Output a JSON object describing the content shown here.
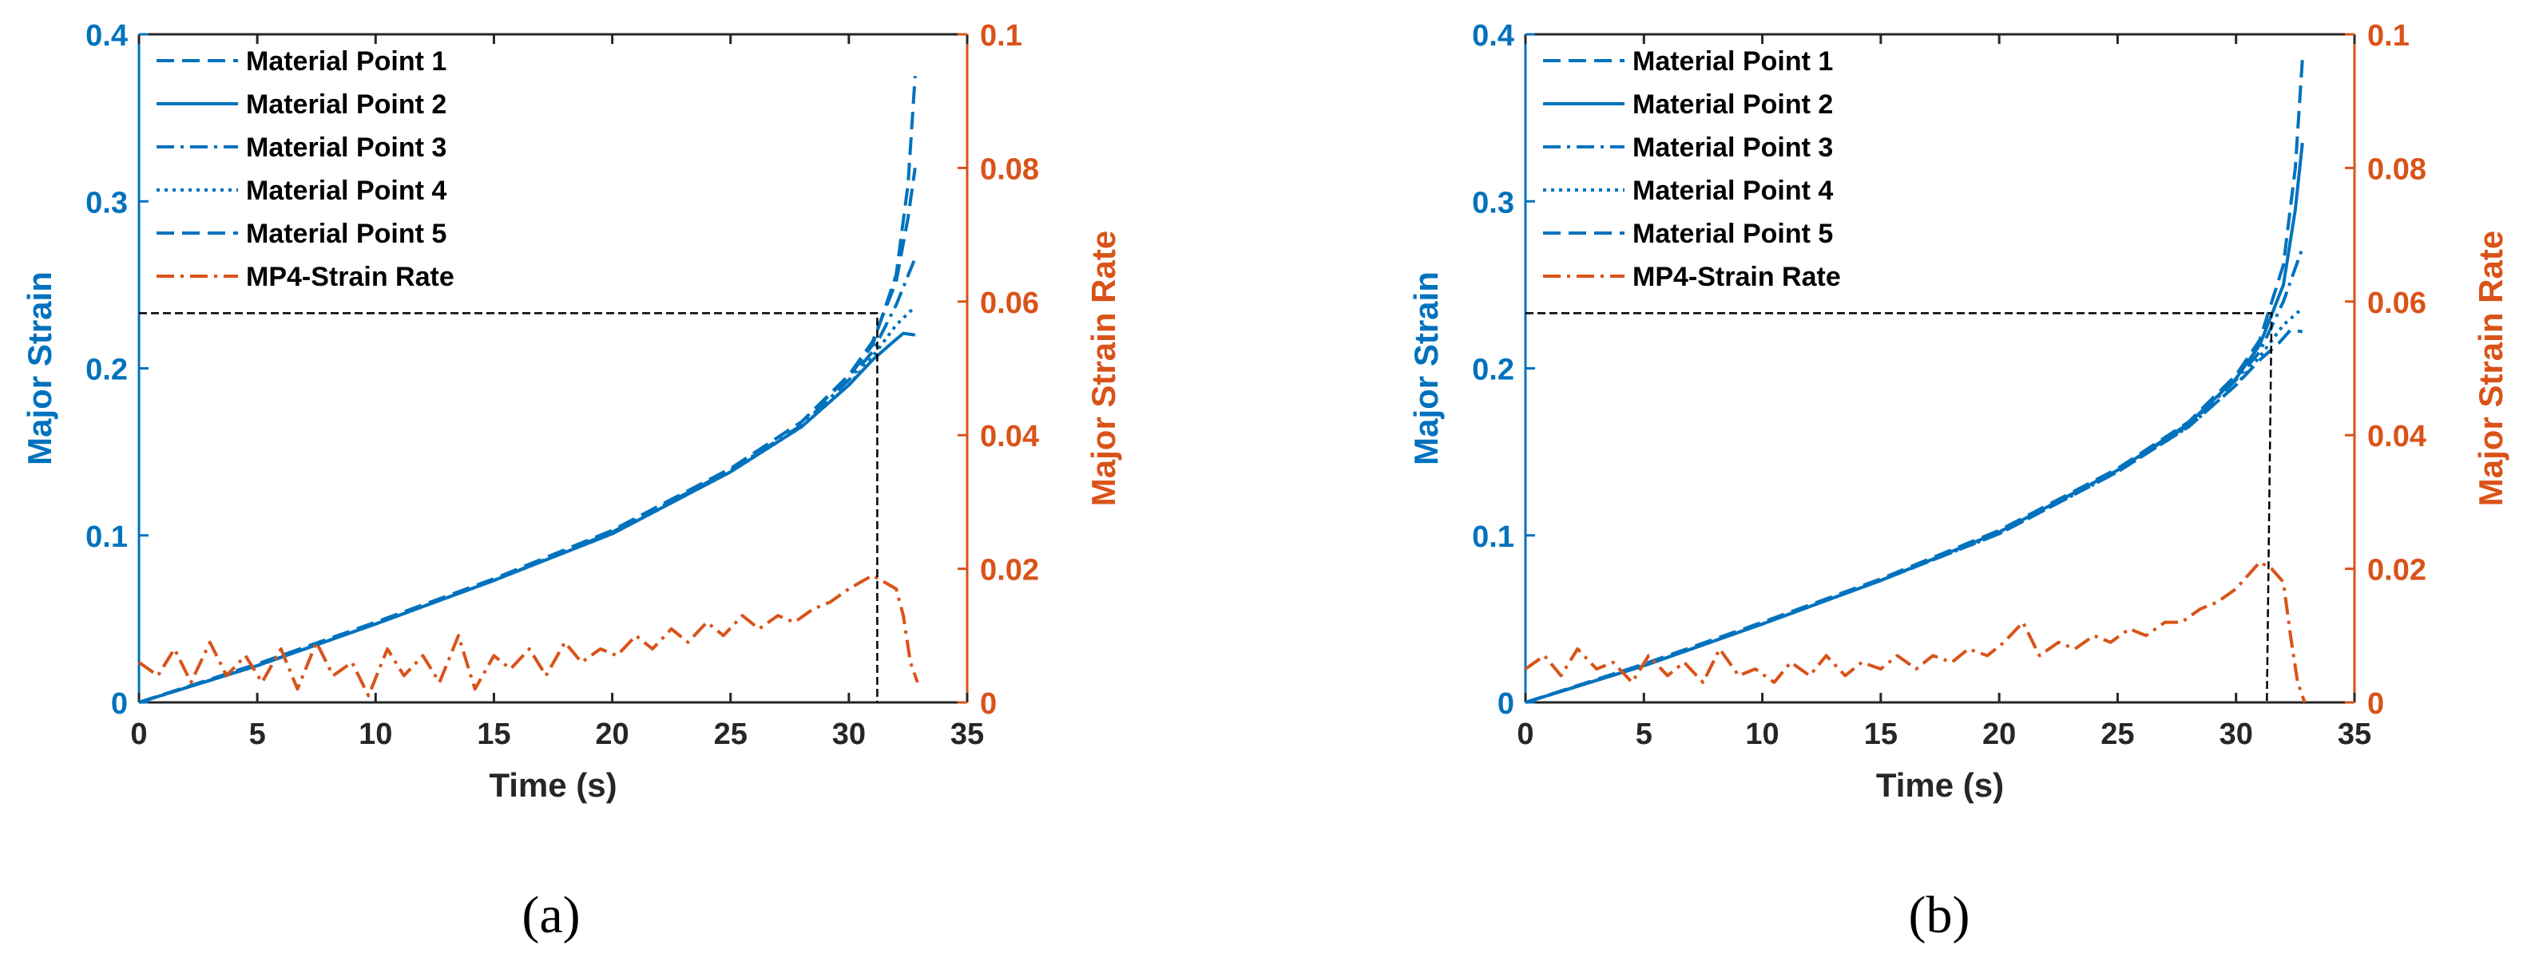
{
  "colors": {
    "left_axis": "#0072BD",
    "right_axis": "#D95319",
    "guide": "#000000"
  },
  "chart_data": [
    {
      "type": "line",
      "panel_label": "(a)",
      "xlabel": "Time (s)",
      "ylabel_left": "Major Strain",
      "ylabel_right": "Major Strain Rate",
      "xlim": [
        0,
        35
      ],
      "ylim_left": [
        0,
        0.4
      ],
      "ylim_right": [
        0,
        0.1
      ],
      "x_ticks": [
        "0",
        "5",
        "10",
        "15",
        "20",
        "25",
        "30",
        "35"
      ],
      "y_left_ticks": [
        "0",
        "0.1",
        "0.2",
        "0.3",
        "0.4"
      ],
      "y_right_ticks": [
        "0",
        "0.02",
        "0.04",
        "0.06",
        "0.08",
        "0.1"
      ],
      "legend_position": "top-left",
      "series": [
        {
          "name": "Material Point 1",
          "axis": "left",
          "style": "dashed",
          "x": [
            0,
            5,
            10,
            15,
            20,
            25,
            28,
            30,
            31,
            32,
            32.5,
            32.8
          ],
          "y": [
            0,
            0.023,
            0.048,
            0.074,
            0.103,
            0.14,
            0.168,
            0.195,
            0.214,
            0.256,
            0.31,
            0.375
          ]
        },
        {
          "name": "Material Point 2",
          "axis": "left",
          "style": "solid",
          "x": [
            0,
            5,
            10,
            15,
            20,
            25,
            28,
            30,
            31,
            31.8,
            32.3,
            32.8
          ],
          "y": [
            0,
            0.022,
            0.047,
            0.073,
            0.101,
            0.138,
            0.165,
            0.19,
            0.205,
            0.215,
            0.221,
            0.22
          ]
        },
        {
          "name": "Material Point 3",
          "axis": "left",
          "style": "dashdot",
          "x": [
            0,
            5,
            10,
            15,
            20,
            25,
            28,
            30,
            31,
            32,
            32.8
          ],
          "y": [
            0,
            0.022,
            0.047,
            0.073,
            0.102,
            0.139,
            0.166,
            0.193,
            0.21,
            0.238,
            0.266
          ]
        },
        {
          "name": "Material Point 4",
          "axis": "left",
          "style": "dotted",
          "x": [
            0,
            5,
            10,
            15,
            20,
            25,
            28,
            30,
            31,
            32,
            32.8
          ],
          "y": [
            0,
            0.022,
            0.047,
            0.073,
            0.101,
            0.138,
            0.165,
            0.19,
            0.207,
            0.226,
            0.237
          ]
        },
        {
          "name": "Material Point 5",
          "axis": "left",
          "style": "dashed",
          "x": [
            0,
            5,
            10,
            15,
            20,
            25,
            28,
            30,
            31,
            32,
            32.5,
            32.8
          ],
          "y": [
            0,
            0.023,
            0.048,
            0.074,
            0.103,
            0.14,
            0.168,
            0.196,
            0.216,
            0.252,
            0.29,
            0.32
          ]
        },
        {
          "name": "MP4-Strain Rate",
          "axis": "right",
          "style": "dashdot",
          "x": [
            0,
            0.8,
            1.5,
            2.2,
            3,
            3.7,
            4.5,
            5.2,
            6,
            6.7,
            7.5,
            8.2,
            9,
            9.7,
            10.5,
            11.2,
            12,
            12.7,
            13.5,
            14.2,
            15,
            15.7,
            16.5,
            17.2,
            18,
            18.7,
            19.5,
            20.2,
            21,
            21.7,
            22.5,
            23.2,
            24,
            24.7,
            25.5,
            26.2,
            27,
            27.7,
            28.5,
            29.2,
            30,
            30.5,
            31,
            31.5,
            32,
            32.3,
            32.6,
            32.9
          ],
          "y": [
            0.006,
            0.004,
            0.008,
            0.003,
            0.009,
            0.004,
            0.007,
            0.003,
            0.008,
            0.002,
            0.009,
            0.004,
            0.006,
            0.001,
            0.008,
            0.004,
            0.007,
            0.003,
            0.01,
            0.002,
            0.007,
            0.005,
            0.008,
            0.004,
            0.009,
            0.006,
            0.008,
            0.007,
            0.01,
            0.008,
            0.011,
            0.009,
            0.012,
            0.01,
            0.013,
            0.011,
            0.013,
            0.012,
            0.014,
            0.015,
            0.017,
            0.018,
            0.019,
            0.018,
            0.017,
            0.013,
            0.006,
            0.003
          ]
        },
        {
          "name": "",
          "axis": "left",
          "style": "guide",
          "x": [
            0,
            31.2,
            31.2
          ],
          "y": [
            0.233,
            0.233,
            0
          ]
        }
      ]
    },
    {
      "type": "line",
      "panel_label": "(b)",
      "xlabel": "Time (s)",
      "ylabel_left": "Major Strain",
      "ylabel_right": "Major Strain Rate",
      "xlim": [
        0,
        35
      ],
      "ylim_left": [
        0,
        0.4
      ],
      "ylim_right": [
        0,
        0.1
      ],
      "x_ticks": [
        "0",
        "5",
        "10",
        "15",
        "20",
        "25",
        "30",
        "35"
      ],
      "y_left_ticks": [
        "0",
        "0.1",
        "0.2",
        "0.3",
        "0.4"
      ],
      "y_right_ticks": [
        "0",
        "0.02",
        "0.04",
        "0.06",
        "0.08",
        "0.1"
      ],
      "legend_position": "top-left",
      "series": [
        {
          "name": "Material Point 1",
          "axis": "left",
          "style": "dashed",
          "x": [
            0,
            5,
            10,
            15,
            20,
            25,
            28,
            30,
            31,
            32,
            32.5,
            32.8
          ],
          "y": [
            0,
            0.023,
            0.048,
            0.074,
            0.103,
            0.14,
            0.168,
            0.196,
            0.217,
            0.262,
            0.32,
            0.385
          ]
        },
        {
          "name": "Material Point 2",
          "axis": "left",
          "style": "solid",
          "x": [
            0,
            5,
            10,
            15,
            20,
            25,
            28,
            30,
            31,
            32,
            32.5,
            32.8
          ],
          "y": [
            0,
            0.022,
            0.047,
            0.073,
            0.102,
            0.139,
            0.167,
            0.194,
            0.214,
            0.25,
            0.295,
            0.335
          ]
        },
        {
          "name": "Material Point 3",
          "axis": "left",
          "style": "dashdot",
          "x": [
            0,
            5,
            10,
            15,
            20,
            25,
            28,
            30,
            31,
            32,
            32.8
          ],
          "y": [
            0,
            0.022,
            0.047,
            0.073,
            0.102,
            0.139,
            0.166,
            0.193,
            0.21,
            0.24,
            0.272
          ]
        },
        {
          "name": "Material Point 4",
          "axis": "left",
          "style": "dotted",
          "x": [
            0,
            5,
            10,
            15,
            20,
            25,
            28,
            30,
            31,
            32,
            32.8
          ],
          "y": [
            0,
            0.022,
            0.047,
            0.073,
            0.101,
            0.138,
            0.165,
            0.19,
            0.207,
            0.226,
            0.236
          ]
        },
        {
          "name": "Material Point 5",
          "axis": "left",
          "style": "dashed",
          "x": [
            0,
            5,
            10,
            15,
            20,
            25,
            28,
            30,
            31,
            31.8,
            32.3,
            32.8
          ],
          "y": [
            0,
            0.022,
            0.047,
            0.073,
            0.101,
            0.138,
            0.165,
            0.19,
            0.205,
            0.215,
            0.223,
            0.222
          ]
        },
        {
          "name": "MP4-Strain Rate",
          "axis": "right",
          "style": "dashdot",
          "x": [
            0,
            0.8,
            1.5,
            2.2,
            3,
            3.7,
            4.5,
            5.2,
            6,
            6.7,
            7.5,
            8.2,
            9,
            9.7,
            10.5,
            11.2,
            12,
            12.7,
            13.5,
            14.2,
            15,
            15.7,
            16.5,
            17.2,
            18,
            18.7,
            19.5,
            20.2,
            21,
            21.7,
            22.5,
            23.2,
            24,
            24.7,
            25.5,
            26.2,
            27,
            27.7,
            28.5,
            29.2,
            30,
            30.5,
            31,
            31.5,
            32,
            32.3,
            32.6,
            32.9
          ],
          "y": [
            0.005,
            0.007,
            0.004,
            0.008,
            0.005,
            0.006,
            0.003,
            0.007,
            0.004,
            0.006,
            0.003,
            0.008,
            0.004,
            0.005,
            0.003,
            0.006,
            0.004,
            0.007,
            0.004,
            0.006,
            0.005,
            0.007,
            0.005,
            0.007,
            0.006,
            0.008,
            0.007,
            0.009,
            0.012,
            0.007,
            0.009,
            0.008,
            0.01,
            0.009,
            0.011,
            0.01,
            0.012,
            0.012,
            0.014,
            0.015,
            0.017,
            0.019,
            0.021,
            0.02,
            0.018,
            0.01,
            0.003,
            0
          ]
        },
        {
          "name": "",
          "axis": "left",
          "style": "guide",
          "x": [
            0,
            31.5,
            31.3
          ],
          "y": [
            0.233,
            0.233,
            0
          ]
        }
      ]
    }
  ]
}
